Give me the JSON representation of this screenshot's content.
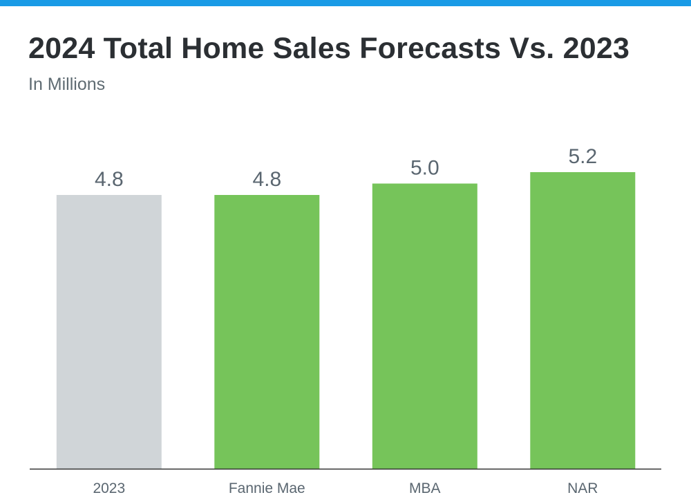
{
  "colors": {
    "top_bar": "#1a9be6",
    "baseline_bar": "#d0d5d8",
    "forecast_bar": "#76c45a",
    "axis_line": "#333333",
    "value_label": "#5a6670",
    "tick_label": "#5a6670"
  },
  "header": {
    "title": "2024 Total Home Sales Forecasts Vs. 2023",
    "subtitle": "In Millions"
  },
  "chart_data": {
    "type": "bar",
    "title": "2024 Total Home Sales Forecasts Vs. 2023",
    "subtitle": "In Millions",
    "categories": [
      "2023",
      "Fannie Mae",
      "MBA",
      "NAR"
    ],
    "values": [
      4.8,
      4.8,
      5.0,
      5.2
    ],
    "value_labels": [
      "4.8",
      "4.8",
      "5.0",
      "5.2"
    ],
    "bar_colors": [
      "#d0d5d8",
      "#76c45a",
      "#76c45a",
      "#76c45a"
    ],
    "xlabel": "",
    "ylabel": "",
    "grid": false,
    "legend": "none"
  }
}
